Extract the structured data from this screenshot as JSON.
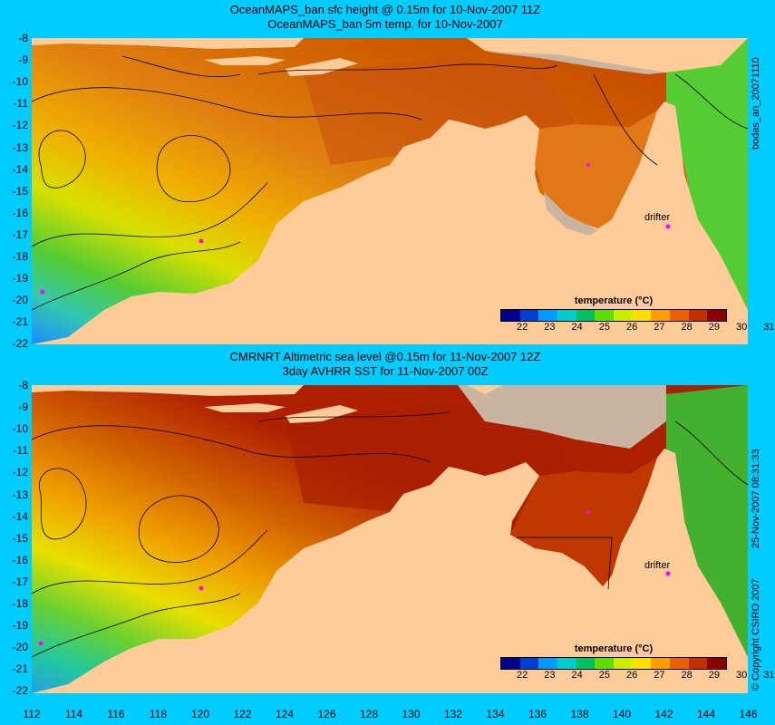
{
  "top_panel": {
    "title_line1": "OceanMAPS_ban sfc height @ 0.15m for 10-Nov-2007 11Z",
    "title_line2": "OceanMAPS_ban 5m temp. for 10-Nov-2007",
    "drifter_label": "drifter",
    "side_label": "bodas_an_20071110"
  },
  "bottom_panel": {
    "title_line1": "CMRNRT Altimetric sea level  @0.15m  for 11-Nov-2007 12Z",
    "title_line2": "3day AVHRR SST for 11-Nov-2007 00Z",
    "drifter_label": "drifter",
    "side_label_date": "25-Nov-2007 08:31:33",
    "side_label_copyright": "© Copyright CSIRO 2007"
  },
  "legend": {
    "title": "temperature (°C)",
    "ticks": [
      "22",
      "23",
      "24",
      "25",
      "26",
      "27",
      "28",
      "29",
      "30",
      "31"
    ],
    "colors": [
      "#00008b",
      "#0040d0",
      "#0099ff",
      "#00ccd0",
      "#00c060",
      "#60dd00",
      "#c8ee00",
      "#ffe000",
      "#ffa000",
      "#e86000",
      "#c03000",
      "#8b0000"
    ]
  },
  "y_axis_labels": [
    "-8",
    "-9",
    "-10",
    "-11",
    "-12",
    "-13",
    "-14",
    "-15",
    "-16",
    "-17",
    "-18",
    "-19",
    "-20",
    "-21",
    "-22"
  ],
  "x_axis_labels": [
    "112",
    "114",
    "116",
    "118",
    "120",
    "122",
    "124",
    "126",
    "128",
    "130",
    "132",
    "134",
    "136",
    "138",
    "140",
    "142",
    "144",
    "146"
  ],
  "colors": {
    "background": "#00ccff",
    "land": "#ffcc99",
    "no_data": "#c8b4a0",
    "drifter_marker": "#ff00ff"
  }
}
